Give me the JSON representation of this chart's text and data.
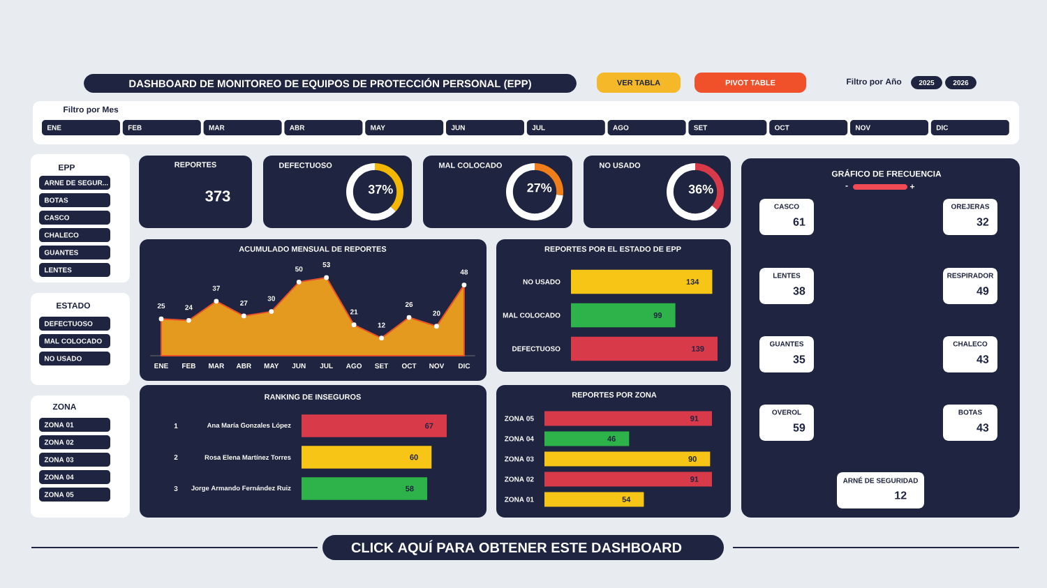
{
  "chart_data": [
    {
      "type": "other",
      "title": "DASHBOARD DE MONITOREO DE EQUIPOS DE PROTECCIÓN PERSONAL (EPP)",
      "annotations": [
        "VER TABLA",
        "PIVOT TABLE",
        "Filtro por Año",
        "2025",
        "2026"
      ]
    },
    {
      "type": "other",
      "title": "Filtro por Mes",
      "categories": [
        "ENE",
        "FEB",
        "MAR",
        "ABR",
        "MAY",
        "JUN",
        "JUL",
        "AGO",
        "SET",
        "OCT",
        "NOV",
        "DIC"
      ]
    },
    {
      "type": "other",
      "title": "EPP",
      "categories": [
        "ARNE DE SEGUR...",
        "BOTAS",
        "CASCO",
        "CHALECO",
        "GUANTES",
        "LENTES"
      ]
    },
    {
      "type": "other",
      "title": "ESTADO",
      "categories": [
        "DEFECTUOSO",
        "MAL COLOCADO",
        "NO USADO"
      ]
    },
    {
      "type": "other",
      "title": "ZONA",
      "categories": [
        "ZONA 01",
        "ZONA 02",
        "ZONA 03",
        "ZONA 04",
        "ZONA 05"
      ]
    },
    {
      "type": "other",
      "title": "REPORTES",
      "annotations": [
        "373"
      ]
    },
    {
      "type": "donut",
      "title": "DEFECTUOSO",
      "categories": [
        null,
        null
      ],
      "values": [
        37,
        63
      ],
      "colors": [
        "#f5b800",
        "#ffffff"
      ],
      "value_labels": [
        "37%",
        null
      ]
    },
    {
      "type": "donut",
      "title": "MAL COLOCADO",
      "categories": [
        null,
        null
      ],
      "values": [
        27,
        73
      ],
      "colors": [
        "#f07e1a",
        "#ffffff"
      ],
      "value_labels": [
        "27%",
        null
      ]
    },
    {
      "type": "donut",
      "title": "NO USADO",
      "categories": [
        null,
        null
      ],
      "values": [
        36,
        64
      ],
      "colors": [
        "#d93a4a",
        "#ffffff"
      ],
      "value_labels": [
        "36%",
        null
      ]
    },
    {
      "type": "area",
      "title": "ACUMULADO MENSUAL DE REPORTES",
      "categories": [
        "ENE",
        "FEB",
        "MAR",
        "ABR",
        "MAY",
        "JUN",
        "JUL",
        "AGO",
        "SET",
        "OCT",
        "NOV",
        "DIC"
      ],
      "values": [
        25,
        24,
        37,
        27,
        30,
        50,
        53,
        21,
        12,
        26,
        20,
        48
      ],
      "color": "#e39a1f",
      "marker": "circle",
      "data_labels": true
    },
    {
      "type": "bar",
      "orientation": "horizontal",
      "title": "REPORTES POR EL ESTADO DE EPP",
      "categories": [
        "NO USADO",
        "MAL COLOCADO",
        "DEFECTUOSO"
      ],
      "values": [
        134,
        99,
        139
      ],
      "colors": [
        "#f7c515",
        "#2db34a",
        "#d93a4a"
      ],
      "data_labels": true
    },
    {
      "type": "bar",
      "orientation": "horizontal",
      "title": "RANKING DE INSEGUROS",
      "categories": [
        "Ana María Gonzales López",
        "Rosa Elena Martínez Torres",
        "Jorge Armando Fernández Ruiz"
      ],
      "values": [
        67,
        60,
        58
      ],
      "colors": [
        "#d93a4a",
        "#f7c515",
        "#2db34a"
      ],
      "data_labels": true,
      "annotations": [
        "1",
        "2",
        "3"
      ]
    },
    {
      "type": "bar",
      "orientation": "horizontal",
      "title": "REPORTES POR ZONA",
      "categories": [
        "ZONA 05",
        "ZONA 04",
        "ZONA 03",
        "ZONA 02",
        "ZONA 01"
      ],
      "values": [
        91,
        46,
        90,
        91,
        54
      ],
      "colors": [
        "#d93a4a",
        "#2db34a",
        "#f7c515",
        "#d93a4a",
        "#f7c515"
      ],
      "data_labels": true
    },
    {
      "type": "other",
      "title": "GRÁFICO DE FRECUENCIA",
      "categories": [
        "CASCO",
        "OREJERAS",
        "LENTES",
        "RESPIRADOR",
        "GUANTES",
        "CHALECO",
        "OVEROL",
        "BOTAS",
        "ARNÉ DE SEGURIDAD"
      ],
      "values": [
        61,
        32,
        38,
        49,
        35,
        43,
        59,
        43,
        12
      ],
      "data_labels": true,
      "annotations": [
        "-",
        "+"
      ]
    },
    {
      "type": "other",
      "annotations": [
        "CLICK AQUÍ PARA OBTENER ESTE DASHBOARD"
      ]
    }
  ]
}
